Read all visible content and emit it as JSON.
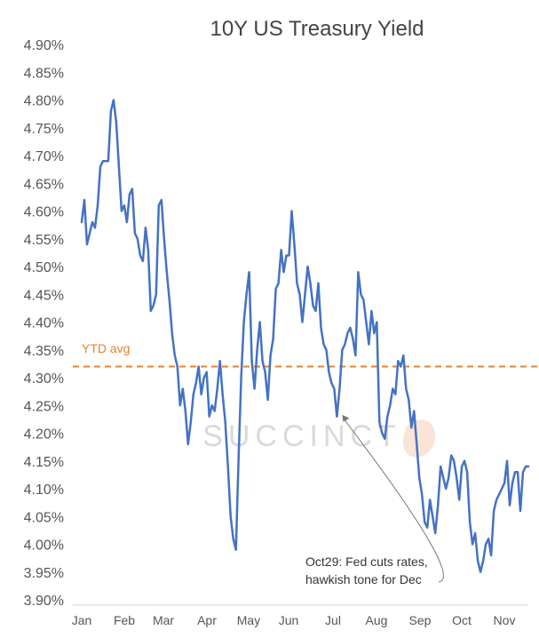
{
  "chart_data": {
    "type": "line",
    "title": "10Y US Treasury Yield",
    "xlabel": "",
    "ylabel": "",
    "ylim": [
      3.9,
      4.9
    ],
    "y_ticks": [
      "3.90%",
      "3.95%",
      "4.00%",
      "4.05%",
      "4.10%",
      "4.15%",
      "4.20%",
      "4.25%",
      "4.30%",
      "4.35%",
      "4.40%",
      "4.45%",
      "4.50%",
      "4.55%",
      "4.60%",
      "4.65%",
      "4.70%",
      "4.75%",
      "4.80%",
      "4.85%",
      "4.90%"
    ],
    "y_tick_values": [
      3.9,
      3.95,
      4.0,
      4.05,
      4.1,
      4.15,
      4.2,
      4.25,
      4.3,
      4.35,
      4.4,
      4.45,
      4.5,
      4.55,
      4.6,
      4.65,
      4.7,
      4.75,
      4.8,
      4.85,
      4.9
    ],
    "x_tick_labels": [
      "Jan",
      "Feb",
      "Mar",
      "Apr",
      "May",
      "Jun",
      "Jul",
      "Aug",
      "Sep",
      "Oct",
      "Nov"
    ],
    "grid": false,
    "legend": "none",
    "line_color": "#4472C4",
    "reference_line": {
      "label": "YTD avg",
      "value": 4.32,
      "color": "#E8822E",
      "style": "dashed"
    },
    "annotation": {
      "lines": [
        "Oct29: Fed cuts rates,",
        "hawkish tone for Dec"
      ],
      "target_index": 96
    },
    "watermark": "SUCCINCT",
    "series": [
      {
        "values": [
          4.58,
          4.62,
          4.54,
          4.56,
          4.58,
          4.57,
          4.61,
          4.68,
          4.69,
          4.69,
          4.69,
          4.78,
          4.8,
          4.76,
          4.68,
          4.6,
          4.61,
          4.58,
          4.63,
          4.64,
          4.56,
          4.55,
          4.52,
          4.51,
          4.57,
          4.53,
          4.42,
          4.43,
          4.45,
          4.61,
          4.62,
          4.55,
          4.49,
          4.44,
          4.38,
          4.34,
          4.32,
          4.25,
          4.28,
          4.24,
          4.18,
          4.22,
          4.27,
          4.29,
          4.32,
          4.27,
          4.3,
          4.31,
          4.23,
          4.25,
          4.24,
          4.28,
          4.33,
          4.27,
          4.22,
          4.14,
          4.05,
          4.01,
          3.99,
          4.15,
          4.3,
          4.4,
          4.45,
          4.49,
          4.33,
          4.28,
          4.35,
          4.4,
          4.33,
          4.31,
          4.26,
          4.34,
          4.37,
          4.46,
          4.47,
          4.53,
          4.49,
          4.52,
          4.52,
          4.6,
          4.54,
          4.47,
          4.45,
          4.4,
          4.45,
          4.5,
          4.47,
          4.43,
          4.42,
          4.47,
          4.39,
          4.36,
          4.35,
          4.31,
          4.29,
          4.28,
          4.23,
          4.28,
          4.35,
          4.36,
          4.38,
          4.39,
          4.37,
          4.34,
          4.49,
          4.45,
          4.44,
          4.4,
          4.36,
          4.42,
          4.38,
          4.4,
          4.22,
          4.2,
          4.19,
          4.23,
          4.25,
          4.28,
          4.27,
          4.33,
          4.32,
          4.34,
          4.28,
          4.26,
          4.21,
          4.24,
          4.18,
          4.12,
          4.09,
          4.04,
          4.03,
          4.08,
          4.05,
          4.02,
          4.07,
          4.14,
          4.12,
          4.1,
          4.12,
          4.16,
          4.15,
          4.12,
          4.08,
          4.14,
          4.15,
          4.13,
          4.04,
          4.0,
          4.02,
          3.97,
          3.95,
          3.97,
          4.0,
          4.01,
          3.98,
          4.06,
          4.08,
          4.09,
          4.1,
          4.11,
          4.15,
          4.07,
          4.11,
          4.13,
          4.13,
          4.06,
          4.13,
          4.14,
          4.14
        ]
      }
    ]
  }
}
